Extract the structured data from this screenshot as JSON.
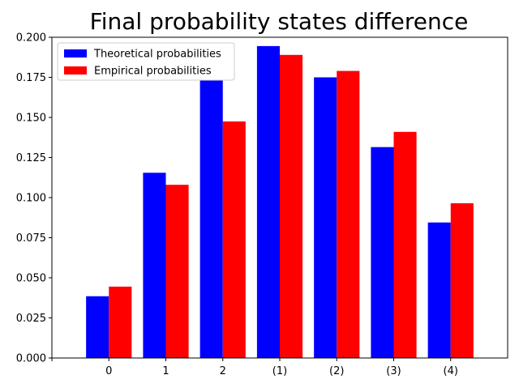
{
  "chart_data": {
    "type": "bar",
    "title": "Final probability states difference",
    "xlabel": "",
    "ylabel": "",
    "categories": [
      "0",
      "1",
      "2",
      "(1)",
      "(2)",
      "(3)",
      "(4)"
    ],
    "series": [
      {
        "name": "Theoretical probabilities",
        "color": "#0000ff",
        "values": [
          0.0385,
          0.1155,
          0.1735,
          0.1945,
          0.175,
          0.1315,
          0.0845
        ]
      },
      {
        "name": "Empirical probabilities",
        "color": "#ff0000",
        "values": [
          0.0445,
          0.108,
          0.1475,
          0.189,
          0.179,
          0.141,
          0.0965
        ]
      }
    ],
    "ylim": [
      0,
      0.2
    ],
    "yticks": [
      "0.000",
      "0.025",
      "0.050",
      "0.075",
      "0.100",
      "0.125",
      "0.150",
      "0.175",
      "0.200"
    ],
    "grid": false,
    "legend_position": "top-left"
  }
}
